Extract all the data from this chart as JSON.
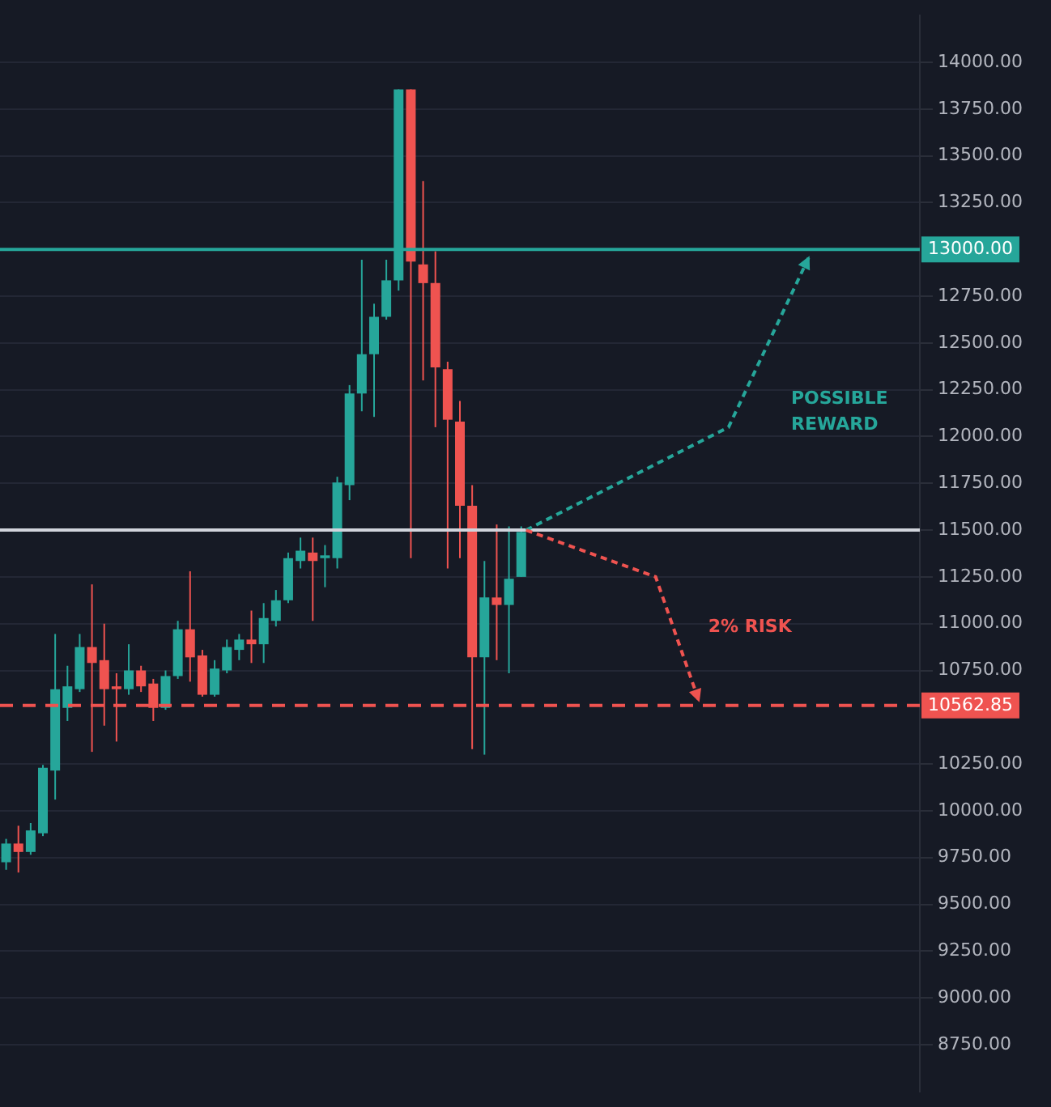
{
  "chart_data": {
    "type": "candlestick",
    "categories": [
      null,
      null,
      null,
      null,
      null,
      null,
      null,
      null,
      null,
      null,
      null,
      null,
      null,
      null,
      null,
      null,
      null,
      null,
      null,
      null,
      null,
      null,
      null,
      null,
      null,
      null,
      null,
      null,
      null,
      null,
      null,
      null,
      null,
      null,
      null,
      null,
      null,
      null,
      null,
      null,
      null,
      null,
      null,
      null,
      null,
      null,
      null,
      null,
      null,
      null,
      null,
      null,
      null,
      null,
      null,
      null,
      null,
      null,
      null,
      null,
      null,
      null,
      null,
      null,
      null,
      null,
      null,
      null,
      null,
      null,
      null,
      null,
      null,
      null,
      null
    ],
    "ohlc": [
      [
        9725,
        9850,
        9685,
        9825
      ],
      [
        9825,
        9920,
        9670,
        9780
      ],
      [
        9780,
        9935,
        9765,
        9895
      ],
      [
        9880,
        10245,
        9865,
        10230
      ],
      [
        10215,
        10945,
        10060,
        10650
      ],
      [
        10550,
        10775,
        10480,
        10665
      ],
      [
        10650,
        10945,
        10635,
        10875
      ],
      [
        10875,
        11210,
        10315,
        10790
      ],
      [
        10805,
        11000,
        10455,
        10650
      ],
      [
        10665,
        10735,
        10370,
        10650
      ],
      [
        10650,
        10890,
        10620,
        10750
      ],
      [
        10750,
        10775,
        10635,
        10665
      ],
      [
        10680,
        10705,
        10480,
        10550
      ],
      [
        10550,
        10750,
        10540,
        10720
      ],
      [
        10720,
        11015,
        10705,
        10970
      ],
      [
        10970,
        11280,
        10690,
        10820
      ],
      [
        10830,
        10860,
        10610,
        10620
      ],
      [
        10620,
        10805,
        10610,
        10760
      ],
      [
        10750,
        10915,
        10735,
        10875
      ],
      [
        10860,
        10945,
        10805,
        10915
      ],
      [
        10915,
        11070,
        10790,
        10890
      ],
      [
        10890,
        11110,
        10790,
        11030
      ],
      [
        11015,
        11180,
        10985,
        11125
      ],
      [
        11125,
        11380,
        11110,
        11350
      ],
      [
        11335,
        11460,
        11295,
        11390
      ],
      [
        11380,
        11460,
        11015,
        11335
      ],
      [
        11350,
        11420,
        11195,
        11365
      ],
      [
        11350,
        11785,
        11295,
        11755
      ],
      [
        11740,
        12275,
        11660,
        12230
      ],
      [
        12230,
        12945,
        12135,
        12440
      ],
      [
        12440,
        12710,
        12105,
        12640
      ],
      [
        12640,
        12945,
        12625,
        12835
      ],
      [
        12835,
        13855,
        12780,
        13855
      ],
      [
        13855,
        13855,
        11350,
        12935
      ],
      [
        12920,
        13365,
        12300,
        12820
      ],
      [
        12820,
        12990,
        12050,
        12370
      ],
      [
        12360,
        12400,
        11295,
        12090
      ],
      [
        12080,
        12190,
        11350,
        11630
      ],
      [
        11630,
        11740,
        10330,
        10820
      ],
      [
        10820,
        11335,
        10300,
        11140
      ],
      [
        11140,
        11530,
        10805,
        11100
      ],
      [
        11100,
        11520,
        10735,
        11240
      ],
      [
        11250,
        11520,
        11250,
        11490
      ],
      null,
      null,
      null,
      null,
      null,
      null,
      null,
      null,
      null,
      null,
      null,
      null,
      null,
      null,
      null,
      null,
      null,
      null,
      null,
      null,
      null,
      null,
      null,
      null,
      null,
      null,
      null,
      null,
      null,
      null,
      null,
      null
    ],
    "colors": [
      "#26a69a",
      "#ef5350",
      "#26a69a",
      "#26a69a",
      "#26a69a",
      "#26a69a",
      "#26a69a",
      "#ef5350",
      "#ef5350",
      "#ef5350",
      "#26a69a",
      "#ef5350",
      "#ef5350",
      "#26a69a",
      "#26a69a",
      "#ef5350",
      "#ef5350",
      "#26a69a",
      "#26a69a",
      "#26a69a",
      "#ef5350",
      "#26a69a",
      "#26a69a",
      "#26a69a",
      "#26a69a",
      "#ef5350",
      "#26a69a",
      "#26a69a",
      "#26a69a",
      "#26a69a",
      "#26a69a",
      "#26a69a",
      "#26a69a",
      "#ef5350",
      "#ef5350",
      "#ef5350",
      "#ef5350",
      "#ef5350",
      "#ef5350",
      "#26a69a",
      "#ef5350",
      "#26a69a",
      "#26a69a",
      null,
      null,
      null,
      null,
      null,
      null,
      null,
      null,
      null,
      null,
      null,
      null,
      null,
      null,
      null,
      null,
      null,
      null,
      null,
      null,
      null,
      null,
      null,
      null,
      null,
      null,
      null,
      null,
      null,
      null,
      null,
      null
    ],
    "ylim": [
      8500,
      14250
    ],
    "yticks": [
      {
        "value": 8750,
        "label": "8750.00"
      },
      {
        "value": 9000,
        "label": "9000.00"
      },
      {
        "value": 9250,
        "label": "9250.00"
      },
      {
        "value": 9500,
        "label": "9500.00"
      },
      {
        "value": 9750,
        "label": "9750.00"
      },
      {
        "value": 10000,
        "label": "10000.00"
      },
      {
        "value": 10250,
        "label": "10250.00"
      },
      {
        "value": 10750,
        "label": "10750.00"
      },
      {
        "value": 11000,
        "label": "11000.00"
      },
      {
        "value": 11250,
        "label": "11250.00"
      },
      {
        "value": 11500,
        "label": "11500.00"
      },
      {
        "value": 11750,
        "label": "11750.00"
      },
      {
        "value": 12000,
        "label": "12000.00"
      },
      {
        "value": 12250,
        "label": "12250.00"
      },
      {
        "value": 12500,
        "label": "12500.00"
      },
      {
        "value": 12750,
        "label": "12750.00"
      },
      {
        "value": 13250,
        "label": "13250.00"
      },
      {
        "value": 13500,
        "label": "13500.00"
      },
      {
        "value": 13750,
        "label": "13750.00"
      },
      {
        "value": 14000,
        "label": "14000.00"
      }
    ],
    "ref_lines": [
      {
        "axis": "y",
        "value": 13000,
        "label": "13000.00",
        "color": "#26a69a",
        "line_style": "solid"
      },
      {
        "axis": "y",
        "value": 11500,
        "color": "#d1d4dc",
        "line_style": "solid"
      },
      {
        "axis": "y",
        "value": 10562.85,
        "label": "10562.85",
        "color": "#ef5350",
        "line_style": "dashed"
      }
    ],
    "annotations": [
      "POSSIBLE REWARD",
      "2% RISK"
    ],
    "grid": "y",
    "tick_labels": "y"
  }
}
